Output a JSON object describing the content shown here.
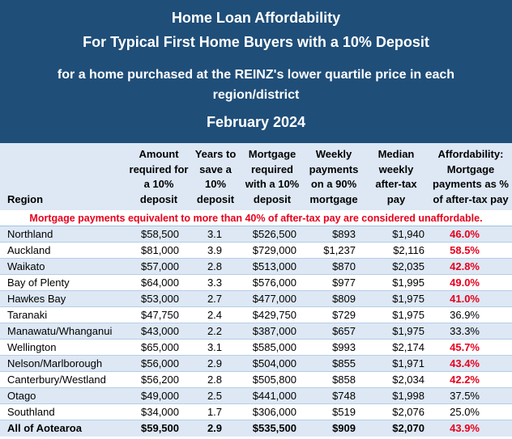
{
  "title": {
    "line1": "Home Loan Affordability",
    "line2": "For Typical First Home Buyers with a 10% Deposit",
    "line3": "for a home purchased at the REINZ's lower quartile price in each region/district",
    "line4": "February 2024"
  },
  "columns": {
    "region": "Region",
    "deposit": "Amount\nrequired for\na 10%\ndeposit",
    "years": "Years to\nsave a\n10%\ndeposit",
    "mortgage": "Mortgage\nrequired\nwith a 10%\ndeposit",
    "weekly": "Weekly\npayments\non a 90%\nmortgage",
    "pay": "Median\nweekly\nafter-tax\npay",
    "afford": "Affordability:\nMortgage\npayments as %\nof after-tax pay"
  },
  "notice": "Mortgage payments equivalent to more than 40% of after-tax pay are considered unaffordable.",
  "colors": {
    "header_bg": "#1f4e79",
    "band_bg": "#dde8f4",
    "alert_red": "#e8001c"
  },
  "rows": [
    {
      "region": "Northland",
      "deposit": "$58,500",
      "years": "3.1",
      "mortgage": "$526,500",
      "weekly": "$893",
      "pay": "$1,940",
      "afford": "46.0%",
      "unaffordable": true
    },
    {
      "region": "Auckland",
      "deposit": "$81,000",
      "years": "3.9",
      "mortgage": "$729,000",
      "weekly": "$1,237",
      "pay": "$2,116",
      "afford": "58.5%",
      "unaffordable": true
    },
    {
      "region": "Waikato",
      "deposit": "$57,000",
      "years": "2.8",
      "mortgage": "$513,000",
      "weekly": "$870",
      "pay": "$2,035",
      "afford": "42.8%",
      "unaffordable": true
    },
    {
      "region": "Bay of Plenty",
      "deposit": "$64,000",
      "years": "3.3",
      "mortgage": "$576,000",
      "weekly": "$977",
      "pay": "$1,995",
      "afford": "49.0%",
      "unaffordable": true
    },
    {
      "region": "Hawkes Bay",
      "deposit": "$53,000",
      "years": "2.7",
      "mortgage": "$477,000",
      "weekly": "$809",
      "pay": "$1,975",
      "afford": "41.0%",
      "unaffordable": true
    },
    {
      "region": "Taranaki",
      "deposit": "$47,750",
      "years": "2.4",
      "mortgage": "$429,750",
      "weekly": "$729",
      "pay": "$1,975",
      "afford": "36.9%",
      "unaffordable": false
    },
    {
      "region": "Manawatu/Whanganui",
      "deposit": "$43,000",
      "years": "2.2",
      "mortgage": "$387,000",
      "weekly": "$657",
      "pay": "$1,975",
      "afford": "33.3%",
      "unaffordable": false
    },
    {
      "region": "Wellington",
      "deposit": "$65,000",
      "years": "3.1",
      "mortgage": "$585,000",
      "weekly": "$993",
      "pay": "$2,174",
      "afford": "45.7%",
      "unaffordable": true
    },
    {
      "region": "Nelson/Marlborough",
      "deposit": "$56,000",
      "years": "2.9",
      "mortgage": "$504,000",
      "weekly": "$855",
      "pay": "$1,971",
      "afford": "43.4%",
      "unaffordable": true
    },
    {
      "region": "Canterbury/Westland",
      "deposit": "$56,200",
      "years": "2.8",
      "mortgage": "$505,800",
      "weekly": "$858",
      "pay": "$2,034",
      "afford": "42.2%",
      "unaffordable": true
    },
    {
      "region": "Otago",
      "deposit": "$49,000",
      "years": "2.5",
      "mortgage": "$441,000",
      "weekly": "$748",
      "pay": "$1,998",
      "afford": "37.5%",
      "unaffordable": false
    },
    {
      "region": "Southland",
      "deposit": "$34,000",
      "years": "1.7",
      "mortgage": "$306,000",
      "weekly": "$519",
      "pay": "$2,076",
      "afford": "25.0%",
      "unaffordable": false
    },
    {
      "region": "All of Aotearoa",
      "deposit": "$59,500",
      "years": "2.9",
      "mortgage": "$535,500",
      "weekly": "$909",
      "pay": "$2,070",
      "afford": "43.9%",
      "unaffordable": true,
      "total": true
    }
  ]
}
